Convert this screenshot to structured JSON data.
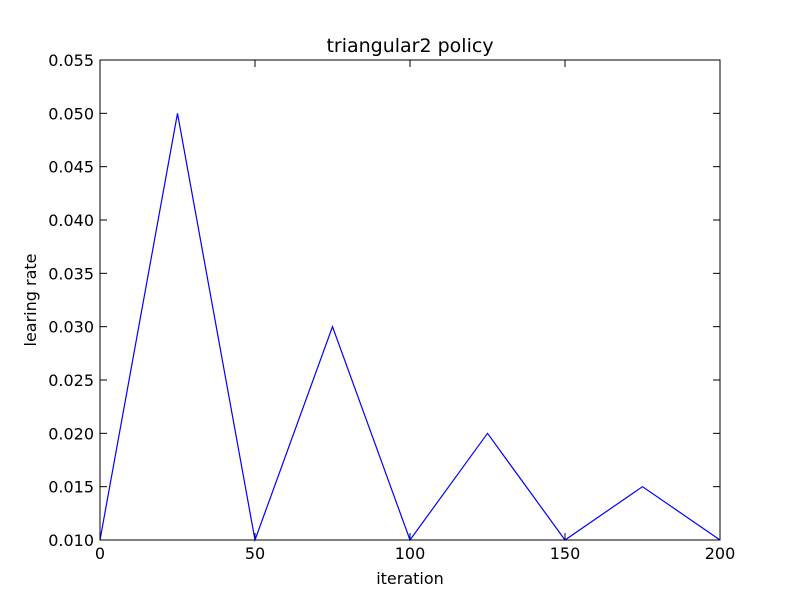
{
  "chart_data": {
    "type": "line",
    "title": "triangular2 policy",
    "xlabel": "iteration",
    "ylabel": "learing rate",
    "xlim": [
      0,
      200
    ],
    "ylim": [
      0.01,
      0.055
    ],
    "xticks": [
      "0",
      "50",
      "100",
      "150",
      "200"
    ],
    "yticks": [
      "0.010",
      "0.015",
      "0.020",
      "0.025",
      "0.030",
      "0.035",
      "0.040",
      "0.045",
      "0.050",
      "0.055"
    ],
    "grid": false,
    "series": [
      {
        "color": "#0000ff",
        "x": [
          0,
          25,
          50,
          75,
          100,
          125,
          150,
          175,
          200
        ],
        "y": [
          0.01,
          0.05,
          0.01,
          0.03,
          0.01,
          0.02,
          0.01,
          0.015,
          0.01
        ]
      }
    ]
  }
}
